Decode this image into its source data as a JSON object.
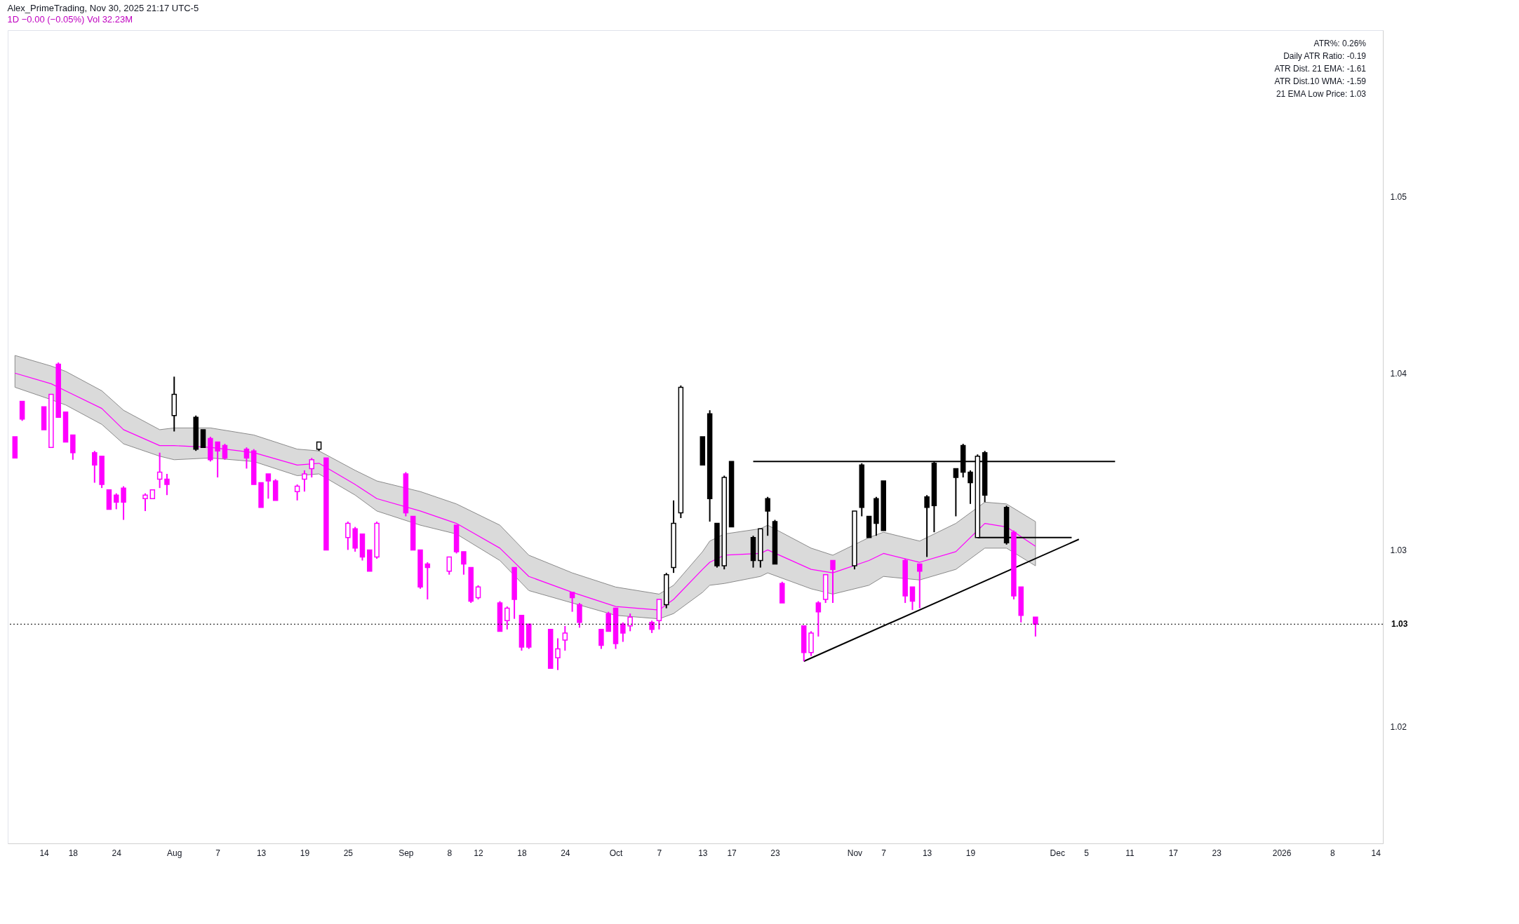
{
  "chart_data": {
    "type": "candlestick",
    "title": "Alex_PrimeTrading, Nov 30, 2025 21:17 UTC-5",
    "subtitle": "1D  −0.00 (−0.05%)  Vol 32.23M",
    "annotations": [
      "ATR%: 0.26%",
      "Daily ATR Ratio: -0.19",
      "ATR Dist. 21 EMA: -1.61",
      "ATR Dist.10 WMA: -1.59",
      "21 EMA Low Price: 1.03"
    ],
    "x": [
      "2025-07-10",
      "2025-07-11",
      "2025-07-14",
      "2025-07-15",
      "2025-07-16",
      "2025-07-17",
      "2025-07-18",
      "2025-07-21",
      "2025-07-22",
      "2025-07-23",
      "2025-07-24",
      "2025-07-25",
      "2025-07-28",
      "2025-07-29",
      "2025-07-30",
      "2025-07-31",
      "2025-08-01",
      "2025-08-04",
      "2025-08-05",
      "2025-08-06",
      "2025-08-07",
      "2025-08-08",
      "2025-08-11",
      "2025-08-12",
      "2025-08-13",
      "2025-08-14",
      "2025-08-15",
      "2025-08-18",
      "2025-08-19",
      "2025-08-20",
      "2025-08-21",
      "2025-08-22",
      "2025-08-25",
      "2025-08-26",
      "2025-08-27",
      "2025-08-28",
      "2025-08-29",
      "2025-09-02",
      "2025-09-03",
      "2025-09-04",
      "2025-09-05",
      "2025-09-08",
      "2025-09-09",
      "2025-09-10",
      "2025-09-11",
      "2025-09-12",
      "2025-09-15",
      "2025-09-16",
      "2025-09-17",
      "2025-09-18",
      "2025-09-19",
      "2025-09-22",
      "2025-09-23",
      "2025-09-24",
      "2025-09-25",
      "2025-09-26",
      "2025-09-29",
      "2025-09-30",
      "2025-10-01",
      "2025-10-02",
      "2025-10-03",
      "2025-10-06",
      "2025-10-07",
      "2025-10-08",
      "2025-10-09",
      "2025-10-10",
      "2025-10-13",
      "2025-10-14",
      "2025-10-15",
      "2025-10-16",
      "2025-10-17",
      "2025-10-20",
      "2025-10-21",
      "2025-10-22",
      "2025-10-23",
      "2025-10-24",
      "2025-10-27",
      "2025-10-28",
      "2025-10-29",
      "2025-10-30",
      "2025-10-31",
      "2025-11-03",
      "2025-11-04",
      "2025-11-05",
      "2025-11-06",
      "2025-11-07",
      "2025-11-10",
      "2025-11-11",
      "2025-11-12",
      "2025-11-13",
      "2025-11-14",
      "2025-11-17",
      "2025-11-18",
      "2025-11-19",
      "2025-11-20",
      "2025-11-21",
      "2025-11-24",
      "2025-11-25",
      "2025-11-26",
      "2025-11-28"
    ],
    "ohlc": [
      [
        1.0364,
        1.0364,
        1.0352,
        1.0352
      ],
      [
        1.0384,
        1.0384,
        1.0373,
        1.0374
      ],
      [
        1.0381,
        1.0381,
        1.0368,
        1.0368
      ],
      [
        1.0358,
        1.0388,
        1.0358,
        1.0388
      ],
      [
        1.0405,
        1.0406,
        1.0375,
        1.0375
      ],
      [
        1.0378,
        1.0378,
        1.0361,
        1.0361
      ],
      [
        1.0365,
        1.0365,
        1.0351,
        1.0355
      ],
      [
        1.0355,
        1.0356,
        1.0338,
        1.0348
      ],
      [
        1.0353,
        1.0353,
        1.0335,
        1.0337
      ],
      [
        1.0334,
        1.0334,
        1.0323,
        1.0323
      ],
      [
        1.0331,
        1.0332,
        1.0323,
        1.0327
      ],
      [
        1.0335,
        1.0336,
        1.0317,
        1.0327
      ],
      [
        1.0329,
        1.0332,
        1.0322,
        1.0331
      ],
      [
        1.0329,
        1.0334,
        1.0329,
        1.0334
      ],
      [
        1.034,
        1.0355,
        1.0335,
        1.0344
      ],
      [
        1.034,
        1.0343,
        1.0331,
        1.0337
      ],
      [
        1.0376,
        1.0398,
        1.0367,
        1.0388
      ],
      [
        1.0375,
        1.0376,
        1.0356,
        1.0357
      ],
      [
        1.0368,
        1.0368,
        1.0358,
        1.0358
      ],
      [
        1.0363,
        1.0364,
        1.035,
        1.0351
      ],
      [
        1.0361,
        1.0361,
        1.0341,
        1.0356
      ],
      [
        1.0359,
        1.036,
        1.0351,
        1.0352
      ],
      [
        1.0357,
        1.0358,
        1.0346,
        1.0352
      ],
      [
        1.0356,
        1.0357,
        1.0337,
        1.0337
      ],
      [
        1.0338,
        1.0338,
        1.0324,
        1.0324
      ],
      [
        1.0343,
        1.0343,
        1.0329,
        1.0339
      ],
      [
        1.0339,
        1.034,
        1.0328,
        1.0328
      ],
      [
        1.0333,
        1.0337,
        1.0328,
        1.0336
      ],
      [
        1.034,
        1.0345,
        1.0333,
        1.0343
      ],
      [
        1.0346,
        1.0352,
        1.0341,
        1.0351
      ],
      [
        1.0357,
        1.0361,
        1.0356,
        1.0361
      ],
      [
        1.0352,
        1.0352,
        1.03,
        1.03
      ],
      [
        1.0307,
        1.0316,
        1.03,
        1.0315
      ],
      [
        1.0312,
        1.0313,
        1.0299,
        1.0301
      ],
      [
        1.0309,
        1.0309,
        1.0294,
        1.0296
      ],
      [
        1.03,
        1.03,
        1.0288,
        1.0288
      ],
      [
        1.0296,
        1.0316,
        1.0295,
        1.0315
      ],
      [
        1.0343,
        1.0344,
        1.0319,
        1.0321
      ],
      [
        1.0319,
        1.0319,
        1.03,
        1.03
      ],
      [
        1.03,
        1.03,
        1.0278,
        1.0279
      ],
      [
        1.0292,
        1.0293,
        1.0272,
        1.029
      ],
      [
        1.0288,
        1.0296,
        1.0286,
        1.0296
      ],
      [
        1.0314,
        1.0314,
        1.0298,
        1.0299
      ],
      [
        1.0299,
        1.0299,
        1.0286,
        1.0292
      ],
      [
        1.029,
        1.029,
        1.027,
        1.0271
      ],
      [
        1.0273,
        1.028,
        1.0272,
        1.0279
      ],
      [
        1.027,
        1.0271,
        1.0254,
        1.0254
      ],
      [
        1.026,
        1.0268,
        1.0255,
        1.0267
      ],
      [
        1.029,
        1.029,
        1.0261,
        1.0272
      ],
      [
        1.0263,
        1.0263,
        1.0243,
        1.0245
      ],
      [
        1.0258,
        1.0258,
        1.0244,
        1.0245
      ],
      [
        1.0255,
        1.0255,
        1.0233,
        1.0233
      ],
      [
        1.0239,
        1.025,
        1.0232,
        1.0244
      ],
      [
        1.0249,
        1.0257,
        1.0243,
        1.0253
      ],
      [
        1.0276,
        1.0276,
        1.0265,
        1.0273
      ],
      [
        1.0269,
        1.027,
        1.0256,
        1.0259
      ],
      [
        1.0255,
        1.0255,
        1.0244,
        1.0246
      ],
      [
        1.0264,
        1.0265,
        1.0254,
        1.0254
      ],
      [
        1.0267,
        1.0267,
        1.0244,
        1.0247
      ],
      [
        1.0258,
        1.0259,
        1.0248,
        1.0253
      ],
      [
        1.0257,
        1.0264,
        1.0254,
        1.0262
      ],
      [
        1.0259,
        1.026,
        1.0253,
        1.0255
      ],
      [
        1.026,
        1.0272,
        1.0255,
        1.0272
      ],
      [
        1.0269,
        1.0287,
        1.0267,
        1.0286
      ],
      [
        1.029,
        1.0328,
        1.0287,
        1.0315
      ],
      [
        1.0321,
        1.0393,
        1.0318,
        1.0392
      ],
      [
        1.0364,
        1.0364,
        1.0348,
        1.0348
      ],
      [
        1.0377,
        1.0379,
        1.0316,
        1.0329
      ],
      [
        1.0315,
        1.0315,
        1.029,
        1.0291
      ],
      [
        1.0291,
        1.0342,
        1.0289,
        1.0341
      ],
      [
        1.035,
        1.035,
        1.0313,
        1.0313
      ],
      [
        1.0307,
        1.0308,
        1.029,
        1.0294
      ],
      [
        1.0294,
        1.0312,
        1.029,
        1.0312
      ],
      [
        1.0329,
        1.033,
        1.0308,
        1.0322
      ],
      [
        1.0316,
        1.0317,
        1.0292,
        1.0292
      ],
      [
        1.0281,
        1.0282,
        1.027,
        1.027
      ],
      [
        1.0257,
        1.0257,
        1.0237,
        1.0242
      ],
      [
        1.0242,
        1.0254,
        1.024,
        1.0253
      ],
      [
        1.027,
        1.0271,
        1.0251,
        1.0265
      ],
      [
        1.0272,
        1.0286,
        1.027,
        1.0286
      ],
      [
        1.0294,
        1.0294,
        1.027,
        1.0289
      ],
      [
        1.0291,
        1.0322,
        1.0289,
        1.0322
      ],
      [
        1.0348,
        1.0349,
        1.0319,
        1.0324
      ],
      [
        1.0319,
        1.0319,
        1.0307,
        1.0307
      ],
      [
        1.0329,
        1.033,
        1.0308,
        1.0315
      ],
      [
        1.0339,
        1.0339,
        1.0311,
        1.0311
      ],
      [
        1.0294,
        1.0295,
        1.027,
        1.0274
      ],
      [
        1.0279,
        1.0279,
        1.0266,
        1.0271
      ],
      [
        1.0292,
        1.0292,
        1.0267,
        1.0288
      ],
      [
        1.033,
        1.0331,
        1.0296,
        1.0324
      ],
      [
        1.0349,
        1.035,
        1.031,
        1.0325
      ],
      [
        1.0346,
        1.0346,
        1.0319,
        1.0341
      ],
      [
        1.0359,
        1.036,
        1.0341,
        1.0344
      ],
      [
        1.0344,
        1.0345,
        1.0326,
        1.0338
      ],
      [
        1.0307,
        1.0354,
        1.0307,
        1.0353
      ],
      [
        1.0355,
        1.0356,
        1.0327,
        1.0331
      ],
      [
        1.0324,
        1.0325,
        1.0303,
        1.0304
      ],
      [
        1.031,
        1.0311,
        1.0272,
        1.0274
      ],
      [
        1.0279,
        1.0279,
        1.0259,
        1.0263
      ],
      [
        1.0262,
        1.0262,
        1.0251,
        1.0258
      ]
    ],
    "colors": [
      "#ff00ff",
      "#ff00ff",
      "#ff00ff",
      "#ff00ff",
      "#ff00ff",
      "#ff00ff",
      "#ff00ff",
      "#ff00ff",
      "#ff00ff",
      "#ff00ff",
      "#ff00ff",
      "#ff00ff",
      "#ff00ff",
      "#ff00ff",
      "#ff00ff",
      "#ff00ff",
      "#000000",
      "#000000",
      "#000000",
      "#ff00ff",
      "#ff00ff",
      "#ff00ff",
      "#ff00ff",
      "#ff00ff",
      "#ff00ff",
      "#ff00ff",
      "#ff00ff",
      "#ff00ff",
      "#ff00ff",
      "#ff00ff",
      "#000000",
      "#ff00ff",
      "#ff00ff",
      "#ff00ff",
      "#ff00ff",
      "#ff00ff",
      "#ff00ff",
      "#ff00ff",
      "#ff00ff",
      "#ff00ff",
      "#ff00ff",
      "#ff00ff",
      "#ff00ff",
      "#ff00ff",
      "#ff00ff",
      "#ff00ff",
      "#ff00ff",
      "#ff00ff",
      "#ff00ff",
      "#ff00ff",
      "#ff00ff",
      "#ff00ff",
      "#ff00ff",
      "#ff00ff",
      "#ff00ff",
      "#ff00ff",
      "#ff00ff",
      "#ff00ff",
      "#ff00ff",
      "#ff00ff",
      "#ff00ff",
      "#ff00ff",
      "#ff00ff",
      "#000000",
      "#000000",
      "#000000",
      "#000000",
      "#000000",
      "#000000",
      "#000000",
      "#000000",
      "#000000",
      "#000000",
      "#000000",
      "#000000",
      "#ff00ff",
      "#ff00ff",
      "#ff00ff",
      "#ff00ff",
      "#ff00ff",
      "#ff00ff",
      "#000000",
      "#000000",
      "#000000",
      "#000000",
      "#000000",
      "#ff00ff",
      "#ff00ff",
      "#ff00ff",
      "#000000",
      "#000000",
      "#000000",
      "#000000",
      "#000000",
      "#000000",
      "#000000",
      "#000000",
      "#ff00ff",
      "#ff00ff",
      "#ff00ff"
    ],
    "series": [
      {
        "type": "line",
        "color": "#ff00ff",
        "x": [
          "2025-07-10",
          "2025-07-15",
          "2025-07-17",
          "2025-07-22",
          "2025-07-25",
          "2025-07-30",
          "2025-08-01",
          "2025-08-06",
          "2025-08-12",
          "2025-08-18",
          "2025-08-21",
          "2025-08-26",
          "2025-08-29",
          "2025-09-04",
          "2025-09-09",
          "2025-09-15",
          "2025-09-19",
          "2025-09-25",
          "2025-10-01",
          "2025-10-07",
          "2025-10-09",
          "2025-10-13",
          "2025-10-14",
          "2025-10-16",
          "2025-10-21",
          "2025-10-22",
          "2025-10-28",
          "2025-10-31",
          "2025-11-05",
          "2025-11-07",
          "2025-11-12",
          "2025-11-17",
          "2025-11-21",
          "2025-11-24",
          "2025-11-28"
        ],
        "values": [
          1.04,
          1.0394,
          1.039,
          1.038,
          1.0368,
          1.0359,
          1.0359,
          1.0358,
          1.0355,
          1.0348,
          1.0349,
          1.0337,
          1.0329,
          1.0322,
          1.0315,
          1.0301,
          1.0285,
          1.0276,
          1.0268,
          1.0266,
          1.0272,
          1.0289,
          1.0293,
          1.0297,
          1.0298,
          1.03,
          1.0289,
          1.0287,
          1.0294,
          1.0298,
          1.0293,
          1.0299,
          1.0315,
          1.0313,
          1.0302
        ],
        "lower": [
          1.0392,
          1.0385,
          1.0382,
          1.0371,
          1.036,
          1.0353,
          1.0351,
          1.0352,
          1.035,
          1.0342,
          1.0343,
          1.0331,
          1.0322,
          1.0314,
          1.0309,
          1.0294,
          1.0277,
          1.027,
          1.0263,
          1.0261,
          1.0264,
          1.0276,
          1.028,
          1.0281,
          1.0285,
          1.0287,
          1.0278,
          1.0275,
          1.028,
          1.0285,
          1.0283,
          1.0289,
          1.0301,
          1.0301,
          1.0291
        ],
        "upper": [
          1.041,
          1.0404,
          1.0401,
          1.039,
          1.0379,
          1.0368,
          1.0369,
          1.0369,
          1.0365,
          1.0357,
          1.0356,
          1.0345,
          1.0339,
          1.0333,
          1.0326,
          1.0314,
          1.0297,
          1.0287,
          1.0279,
          1.0275,
          1.028,
          1.0299,
          1.0305,
          1.0309,
          1.0312,
          1.0314,
          1.0301,
          1.0297,
          1.0307,
          1.031,
          1.0305,
          1.0315,
          1.0327,
          1.0326,
          1.0316
        ]
      },
      {
        "type": "line",
        "color": "#000000",
        "x": [
          "2025-10-27",
          "2025-12-04"
        ],
        "values": [
          1.0237,
          1.0306
        ]
      },
      {
        "type": "line",
        "color": "#000000",
        "x": [
          "2025-10-20",
          "2025-12-09"
        ],
        "values": [
          1.035,
          1.035
        ]
      },
      {
        "type": "line",
        "color": "#000000",
        "x": [
          "2025-11-20",
          "2025-12-03"
        ],
        "values": [
          1.0307,
          1.0307
        ]
      }
    ],
    "ref_lines": [
      {
        "axis": "y",
        "value": 1.0258,
        "label": "1.03",
        "line_style": "dotted",
        "color": "#000000"
      }
    ],
    "xlim": [
      "2025-07-09",
      "2026-01-15"
    ],
    "xticks": [
      {
        "value": "2025-07-14",
        "label": "14"
      },
      {
        "value": "2025-07-18",
        "label": "18"
      },
      {
        "value": "2025-07-24",
        "label": "24"
      },
      {
        "value": "2025-08-01",
        "label": "Aug"
      },
      {
        "value": "2025-08-07",
        "label": "7"
      },
      {
        "value": "2025-08-13",
        "label": "13"
      },
      {
        "value": "2025-08-19",
        "label": "19"
      },
      {
        "value": "2025-08-25",
        "label": "25"
      },
      {
        "value": "2025-09-02",
        "label": "Sep"
      },
      {
        "value": "2025-09-08",
        "label": "8"
      },
      {
        "value": "2025-09-12",
        "label": "12"
      },
      {
        "value": "2025-09-18",
        "label": "18"
      },
      {
        "value": "2025-09-24",
        "label": "24"
      },
      {
        "value": "2025-10-01",
        "label": "Oct"
      },
      {
        "value": "2025-10-07",
        "label": "7"
      },
      {
        "value": "2025-10-13",
        "label": "13"
      },
      {
        "value": "2025-10-17",
        "label": "17"
      },
      {
        "value": "2025-10-23",
        "label": "23"
      },
      {
        "value": "2025-11-03",
        "label": "Nov"
      },
      {
        "value": "2025-11-07",
        "label": "7"
      },
      {
        "value": "2025-11-13",
        "label": "13"
      },
      {
        "value": "2025-11-19",
        "label": "19"
      },
      {
        "value": "2025-12-01",
        "label": "Dec"
      },
      {
        "value": "2025-12-05",
        "label": "5"
      },
      {
        "value": "2025-12-11",
        "label": "11"
      },
      {
        "value": "2025-12-17",
        "label": "17"
      },
      {
        "value": "2025-12-23",
        "label": "23"
      },
      {
        "value": "2026-01-01",
        "label": "2026"
      },
      {
        "value": "2026-01-08",
        "label": "8"
      },
      {
        "value": "2026-01-14",
        "label": "14"
      }
    ],
    "ylim": [
      1.0134,
      1.0594
    ],
    "yticks": [
      1.02,
      1.03,
      1.04,
      1.05
    ]
  }
}
